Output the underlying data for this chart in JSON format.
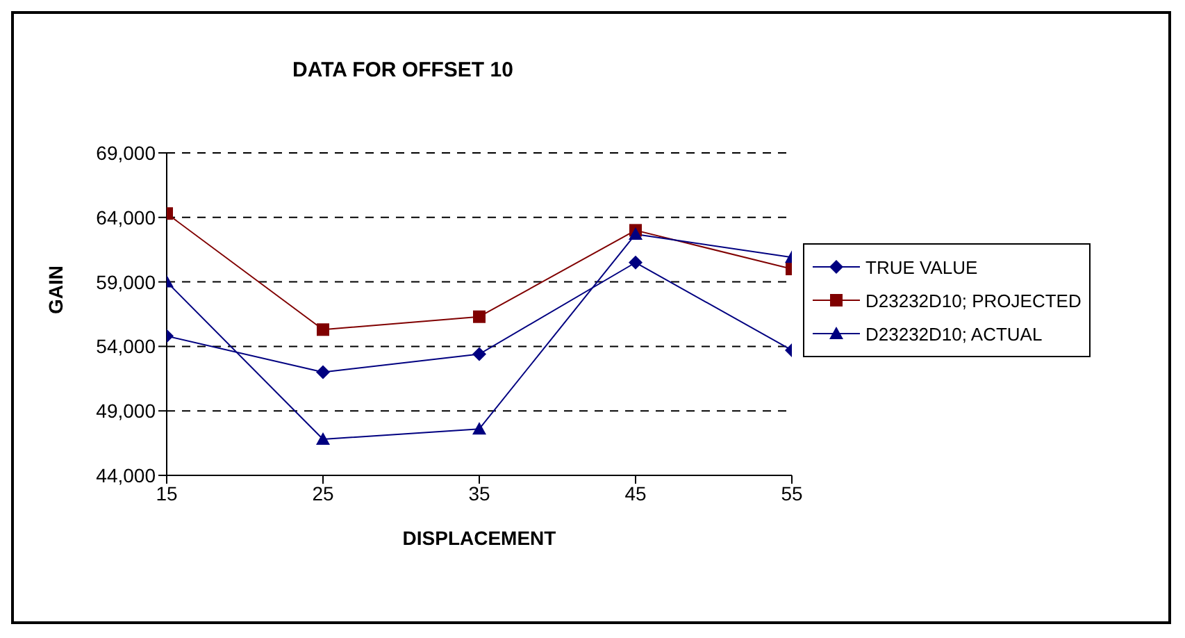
{
  "chart_data": {
    "type": "line",
    "title": "DATA FOR OFFSET 10",
    "xlabel": "DISPLACEMENT",
    "ylabel": "GAIN",
    "x": [
      15,
      25,
      35,
      45,
      55
    ],
    "series": [
      {
        "name": "TRUE VALUE",
        "color": "#000080",
        "marker": "diamond",
        "values": [
          54800,
          52000,
          53400,
          60500,
          53700
        ]
      },
      {
        "name": "D23232D10; PROJECTED",
        "color": "#800000",
        "marker": "square",
        "values": [
          64300,
          55300,
          56300,
          63000,
          60000
        ]
      },
      {
        "name": "D23232D10; ACTUAL",
        "color": "#000080",
        "marker": "triangle",
        "values": [
          59000,
          46800,
          47600,
          62700,
          60900
        ]
      }
    ],
    "xlim": [
      15,
      55
    ],
    "xticks": [
      15,
      25,
      35,
      45,
      55
    ],
    "ylim": [
      44000,
      69000
    ],
    "yticks": [
      {
        "value": 44000,
        "label": "44,000"
      },
      {
        "value": 49000,
        "label": "49,000"
      },
      {
        "value": 54000,
        "label": "54,000"
      },
      {
        "value": 59000,
        "label": "59,000"
      },
      {
        "value": 64000,
        "label": "64,000"
      },
      {
        "value": 69000,
        "label": "69,000"
      }
    ],
    "grid": "y",
    "legend": "right"
  }
}
